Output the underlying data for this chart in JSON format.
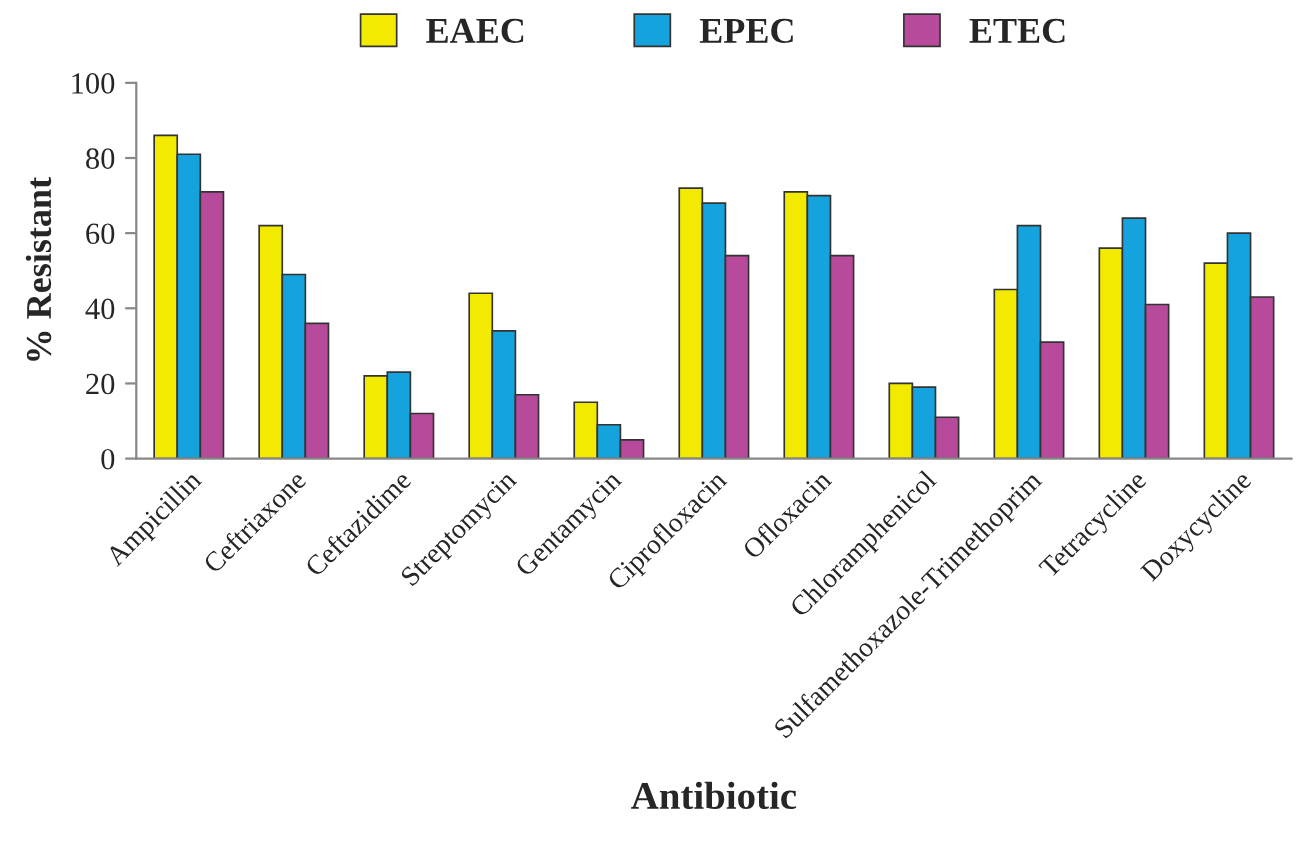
{
  "chart_data": {
    "type": "bar",
    "xlabel": "Antibiotic",
    "ylabel": "% Resistant",
    "categories": [
      "Ampicillin",
      "Ceftriaxone",
      "Ceftazidime",
      "Streptomycin",
      "Gentamycin",
      "Ciprofloxacin",
      "Ofloxacin",
      "Chloramphenicol",
      "Sulfamethoxazole-Trimethoprim",
      "Tetracycline",
      "Doxycycline"
    ],
    "series": [
      {
        "name": "EAEC",
        "color": "#f2ea00",
        "values": [
          86,
          62,
          22,
          44,
          15,
          72,
          71,
          20,
          45,
          56,
          52
        ]
      },
      {
        "name": "EPEC",
        "color": "#14a3dc",
        "values": [
          81,
          49,
          23,
          34,
          9,
          68,
          70,
          19,
          62,
          64,
          60
        ]
      },
      {
        "name": "ETEC",
        "color": "#b84a9c",
        "values": [
          71,
          36,
          12,
          17,
          5,
          54,
          54,
          11,
          31,
          41,
          43
        ]
      }
    ],
    "ylim": [
      0,
      100
    ],
    "yticks": [
      0,
      20,
      40,
      60,
      80,
      100
    ],
    "grid": false,
    "legend": "top"
  }
}
